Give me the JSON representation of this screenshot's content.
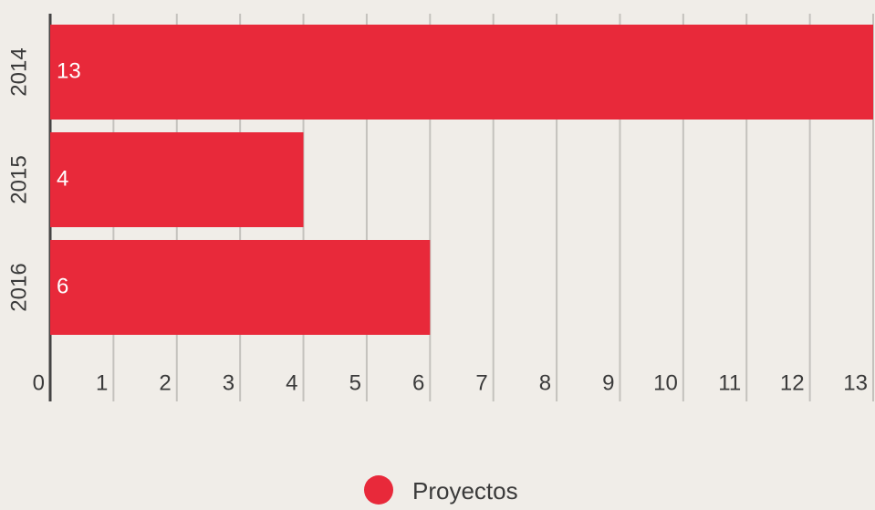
{
  "chart_data": {
    "type": "bar",
    "orientation": "horizontal",
    "categories": [
      "2014",
      "2015",
      "2016"
    ],
    "series": [
      {
        "name": "Proyectos",
        "color": "#e8293a",
        "values": [
          13,
          4,
          6
        ]
      }
    ],
    "xlim": [
      0,
      13
    ],
    "xticks": [
      0,
      1,
      2,
      3,
      4,
      5,
      6,
      7,
      8,
      9,
      10,
      11,
      12,
      13
    ],
    "grid": true,
    "legend": "bottom"
  }
}
